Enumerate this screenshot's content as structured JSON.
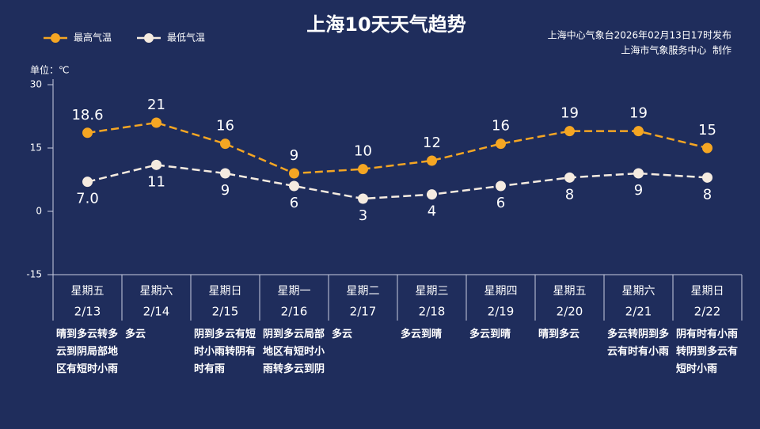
{
  "chart_data": {
    "type": "line",
    "title": "上海10天天气趋势",
    "source": "上海中心气象台2026年02月13日17时发布",
    "producer": "上海市气象服务中心  制作",
    "unit_label": "单位：℃",
    "categories": [
      "2/13",
      "2/14",
      "2/15",
      "2/16",
      "2/17",
      "2/18",
      "2/19",
      "2/20",
      "2/21",
      "2/22"
    ],
    "weekdays": [
      "星期五",
      "星期六",
      "星期日",
      "星期一",
      "星期二",
      "星期三",
      "星期四",
      "星期五",
      "星期六",
      "星期日"
    ],
    "weekday_colors": [
      "#ffffff",
      "#f5a623",
      "#f5a623",
      "#ffffff",
      "#ffffff",
      "#ffffff",
      "#ffffff",
      "#ffffff",
      "#f5a623",
      "#f5a623"
    ],
    "weather": [
      "晴到多云转多云到阴局部地区有短时小雨",
      "多云",
      "阴到多云有短时小雨转阴有时有雨",
      "阴到多云局部地区有短时小雨转多云到阴",
      "多云",
      "多云到晴",
      "多云到晴",
      "晴到多云",
      "多云转阴到多云有时有小雨",
      "阴有时有小雨转阴到多云有短时小雨"
    ],
    "series": [
      {
        "name": "最高气温",
        "color": "#f5a623",
        "values": [
          18.6,
          21,
          16,
          9,
          10,
          12,
          16,
          19,
          19,
          15
        ]
      },
      {
        "name": "最低气温",
        "color": "#f5ebe0",
        "values": [
          7,
          11,
          9,
          6,
          3,
          4,
          6,
          8,
          9,
          8
        ],
        "value_labels": [
          "7.0",
          "11",
          "9",
          "6",
          "3",
          "4",
          "6",
          "8",
          "9",
          "8"
        ]
      }
    ],
    "ylim": [
      -15,
      30
    ],
    "yticks": [
      30,
      15,
      0,
      -15
    ]
  }
}
